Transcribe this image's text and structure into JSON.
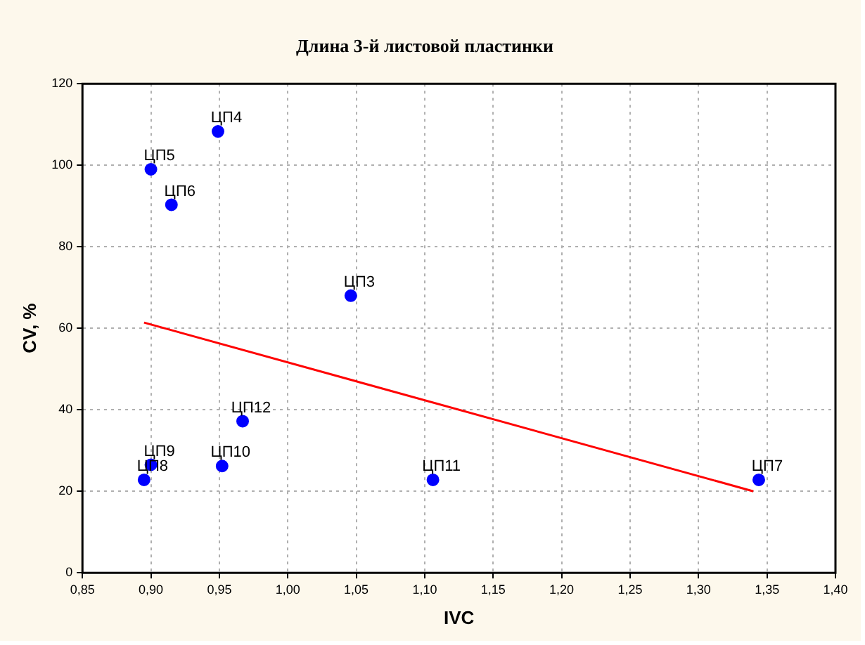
{
  "chart_data": {
    "type": "scatter",
    "title": "Длина 3-й листовой пластинки",
    "xlabel": "IVC",
    "ylabel": "CV, %",
    "series": [
      {
        "type": "scatter",
        "marker": "circle",
        "color": "#0000ff",
        "x": [
          1.046,
          0.949,
          0.9,
          0.915,
          1.344,
          0.895,
          0.9,
          0.952,
          1.106,
          0.967
        ],
        "values": [
          68,
          108.3,
          99,
          90.3,
          22.8,
          22.8,
          26.5,
          26.2,
          22.8,
          37.2
        ]
      },
      {
        "type": "line",
        "marker": "none",
        "color": "#ff0000",
        "x": [
          0.895,
          1.34
        ],
        "values": [
          61.4,
          20
        ]
      }
    ],
    "annotations": [
      {
        "text": "ЦП3",
        "x": 1.046,
        "y": 68
      },
      {
        "text": "ЦП4",
        "x": 0.949,
        "y": 108.3
      },
      {
        "text": "ЦП5",
        "x": 0.9,
        "y": 99
      },
      {
        "text": "ЦП6",
        "x": 0.915,
        "y": 90.3
      },
      {
        "text": "ЦП7",
        "x": 1.344,
        "y": 22.8
      },
      {
        "text": "ЦП8",
        "x": 0.895,
        "y": 22.8
      },
      {
        "text": "ЦП9",
        "x": 0.9,
        "y": 26.5
      },
      {
        "text": "ЦП10",
        "x": 0.952,
        "y": 26.2
      },
      {
        "text": "ЦП11",
        "x": 1.106,
        "y": 22.8
      },
      {
        "text": "ЦП12",
        "x": 0.967,
        "y": 37.2
      }
    ],
    "xlim": [
      0.85,
      1.4
    ],
    "xticks": [
      {
        "value": 0.85,
        "label": "0,85"
      },
      {
        "value": 0.9,
        "label": "0,90"
      },
      {
        "value": 0.95,
        "label": "0,95"
      },
      {
        "value": 1.0,
        "label": "1,00"
      },
      {
        "value": 1.05,
        "label": "1,05"
      },
      {
        "value": 1.1,
        "label": "1,10"
      },
      {
        "value": 1.15,
        "label": "1,15"
      },
      {
        "value": 1.2,
        "label": "1,20"
      },
      {
        "value": 1.25,
        "label": "1,25"
      },
      {
        "value": 1.3,
        "label": "1,30"
      },
      {
        "value": 1.35,
        "label": "1,35"
      },
      {
        "value": 1.4,
        "label": "1,40"
      }
    ],
    "ylim": [
      0,
      120
    ],
    "yticks": [
      0,
      20,
      40,
      60,
      80,
      100,
      120
    ],
    "grid": true,
    "legend": false,
    "line_style": "solid"
  }
}
